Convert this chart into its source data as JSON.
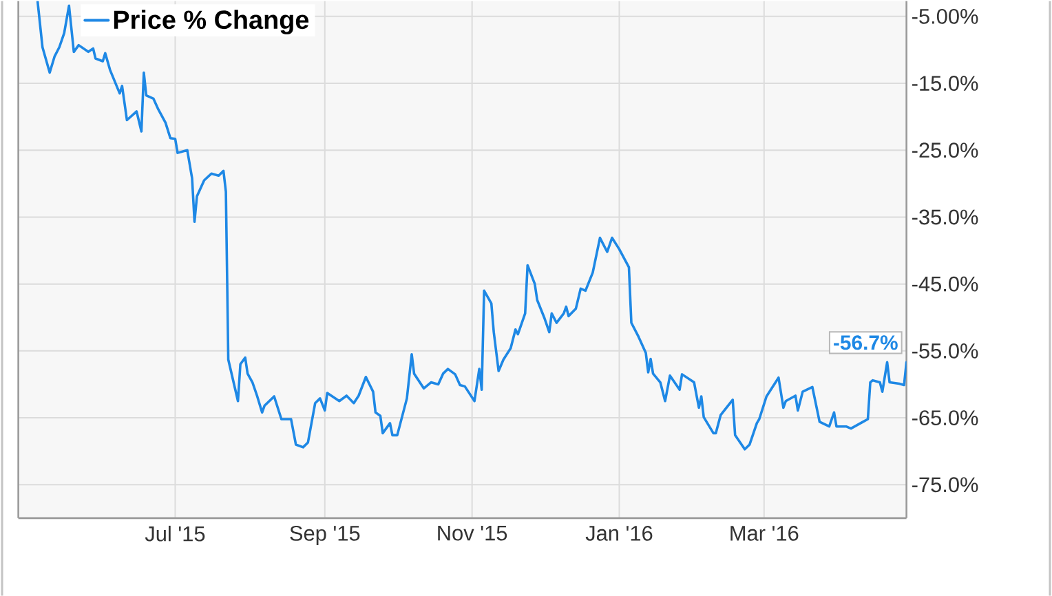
{
  "chart_data": {
    "type": "line",
    "x": [
      "2015-05-05",
      "2015-05-07",
      "2015-05-10",
      "2015-05-12",
      "2015-05-14",
      "2015-05-16",
      "2015-05-18",
      "2015-05-20",
      "2015-05-22",
      "2015-05-26",
      "2015-05-28",
      "2015-05-29",
      "2015-06-01",
      "2015-06-02",
      "2015-06-04",
      "2015-06-08",
      "2015-06-09",
      "2015-06-11",
      "2015-06-15",
      "2015-06-17",
      "2015-06-18",
      "2015-06-19",
      "2015-06-22",
      "2015-06-24",
      "2015-06-27",
      "2015-06-29",
      "2015-07-01",
      "2015-07-02",
      "2015-07-06",
      "2015-07-08",
      "2015-07-09",
      "2015-07-10",
      "2015-07-13",
      "2015-07-16",
      "2015-07-19",
      "2015-07-21",
      "2015-07-22",
      "2015-07-23",
      "2015-07-27",
      "2015-07-28",
      "2015-07-30",
      "2015-07-31",
      "2015-08-02",
      "2015-08-04",
      "2015-08-06",
      "2015-08-07",
      "2015-08-11",
      "2015-08-14",
      "2015-08-18",
      "2015-08-20",
      "2015-08-23",
      "2015-08-25",
      "2015-08-28",
      "2015-08-30",
      "2015-09-01",
      "2015-09-02",
      "2015-09-07",
      "2015-09-10",
      "2015-09-13",
      "2015-09-15",
      "2015-09-18",
      "2015-09-21",
      "2015-09-22",
      "2015-09-24",
      "2015-09-25",
      "2015-09-28",
      "2015-09-29",
      "2015-10-01",
      "2015-10-05",
      "2015-10-07",
      "2015-10-08",
      "2015-10-12",
      "2015-10-15",
      "2015-10-18",
      "2015-10-20",
      "2015-10-22",
      "2015-10-25",
      "2015-10-27",
      "2015-10-29",
      "2015-11-02",
      "2015-11-04",
      "2015-11-05",
      "2015-11-06",
      "2015-11-09",
      "2015-11-10",
      "2015-11-12",
      "2015-11-14",
      "2015-11-17",
      "2015-11-19",
      "2015-11-20",
      "2015-11-23",
      "2015-11-24",
      "2015-11-27",
      "2015-11-28",
      "2015-12-01",
      "2015-12-03",
      "2015-12-04",
      "2015-12-06",
      "2015-12-09",
      "2015-12-10",
      "2015-12-11",
      "2015-12-14",
      "2015-12-16",
      "2015-12-18",
      "2015-12-21",
      "2015-12-24",
      "2015-12-27",
      "2015-12-29",
      "2016-01-01",
      "2016-01-05",
      "2016-01-06",
      "2016-01-09",
      "2016-01-12",
      "2016-01-13",
      "2016-01-14",
      "2016-01-15",
      "2016-01-18",
      "2016-01-20",
      "2016-01-22",
      "2016-01-26",
      "2016-01-27",
      "2016-02-01",
      "2016-02-03",
      "2016-02-04",
      "2016-02-05",
      "2016-02-09",
      "2016-02-10",
      "2016-02-12",
      "2016-02-17",
      "2016-02-18",
      "2016-02-22",
      "2016-02-24",
      "2016-02-27",
      "2016-02-28",
      "2016-03-02",
      "2016-03-07",
      "2016-03-09",
      "2016-03-10",
      "2016-03-14",
      "2016-03-15",
      "2016-03-17",
      "2016-03-21",
      "2016-03-24",
      "2016-03-28",
      "2016-03-30",
      "2016-03-31",
      "2016-04-04",
      "2016-04-06",
      "2016-04-11",
      "2016-04-13",
      "2016-04-14",
      "2016-04-15",
      "2016-04-18",
      "2016-04-19",
      "2016-04-21",
      "2016-04-22",
      "2016-04-26",
      "2016-04-28",
      "2016-04-29"
    ],
    "series": [
      {
        "name": "Price % Change",
        "color": "#1e88e5",
        "values": [
          -2.8,
          -9.6,
          -13.4,
          -11.0,
          -9.6,
          -7.5,
          -3.4,
          -10.3,
          -9.3,
          -10.3,
          -9.8,
          -11.3,
          -11.7,
          -10.5,
          -13.0,
          -16.5,
          -15.4,
          -20.5,
          -19.2,
          -22.2,
          -13.4,
          -16.8,
          -17.3,
          -18.9,
          -20.9,
          -23.2,
          -23.3,
          -25.4,
          -25.0,
          -29.2,
          -35.7,
          -31.9,
          -29.5,
          -28.5,
          -28.8,
          -28.1,
          -31.2,
          -56.3,
          -62.5,
          -57.0,
          -56.0,
          -58.4,
          -59.7,
          -61.8,
          -64.2,
          -63.2,
          -61.8,
          -65.2,
          -65.2,
          -69.0,
          -69.4,
          -68.7,
          -62.8,
          -62.1,
          -63.9,
          -61.3,
          -62.5,
          -61.7,
          -62.8,
          -61.7,
          -58.9,
          -61.1,
          -64.2,
          -64.7,
          -67.3,
          -65.8,
          -67.6,
          -67.6,
          -62.1,
          -55.5,
          -58.4,
          -60.6,
          -59.7,
          -60.0,
          -58.4,
          -57.7,
          -58.5,
          -60.1,
          -60.3,
          -62.5,
          -57.7,
          -60.8,
          -46.0,
          -47.9,
          -52.2,
          -58.0,
          -56.3,
          -54.6,
          -51.8,
          -52.5,
          -49.4,
          -42.2,
          -45.0,
          -47.4,
          -50.1,
          -52.2,
          -49.4,
          -50.8,
          -49.4,
          -48.4,
          -49.8,
          -48.7,
          -45.7,
          -46.0,
          -43.3,
          -38.1,
          -40.2,
          -38.1,
          -39.8,
          -42.5,
          -50.8,
          -52.9,
          -55.3,
          -58.2,
          -56.2,
          -58.4,
          -59.7,
          -62.5,
          -58.7,
          -60.8,
          -58.5,
          -59.7,
          -63.5,
          -61.8,
          -64.9,
          -67.3,
          -67.3,
          -64.6,
          -62.3,
          -67.6,
          -69.7,
          -69.0,
          -65.8,
          -65.2,
          -61.8,
          -59.0,
          -63.5,
          -62.5,
          -61.7,
          -63.9,
          -61.1,
          -60.4,
          -65.6,
          -66.3,
          -64.2,
          -66.3,
          -66.3,
          -66.6,
          -65.6,
          -65.2,
          -59.7,
          -59.4,
          -59.7,
          -61.1,
          -56.7,
          -59.7,
          -59.9,
          -60.1,
          -56.7
        ]
      }
    ],
    "xlim": [
      "2015-04-27",
      "2016-04-29"
    ],
    "xticks": [
      {
        "value": "2015-07-01",
        "label": "Jul '15"
      },
      {
        "value": "2015-09-01",
        "label": "Sep '15"
      },
      {
        "value": "2015-11-01",
        "label": "Nov '15"
      },
      {
        "value": "2016-01-01",
        "label": "Jan '16"
      },
      {
        "value": "2016-03-01",
        "label": "Mar '16"
      }
    ],
    "ylim": [
      -80,
      -2.7
    ],
    "yticks": [
      {
        "value": -5,
        "label": "-5.00%"
      },
      {
        "value": -15,
        "label": "-15.0%"
      },
      {
        "value": -25,
        "label": "-25.0%"
      },
      {
        "value": -35,
        "label": "-35.0%"
      },
      {
        "value": -45,
        "label": "-45.0%"
      },
      {
        "value": -55,
        "label": "-55.0%"
      },
      {
        "value": -65,
        "label": "-65.0%"
      },
      {
        "value": -75,
        "label": "-75.0%"
      }
    ],
    "grid": true,
    "legend": "top left",
    "line_style": "solid",
    "annotations": [
      {
        "text": "-56.7%",
        "x": "2016-04-29",
        "y": -56.7
      }
    ]
  }
}
